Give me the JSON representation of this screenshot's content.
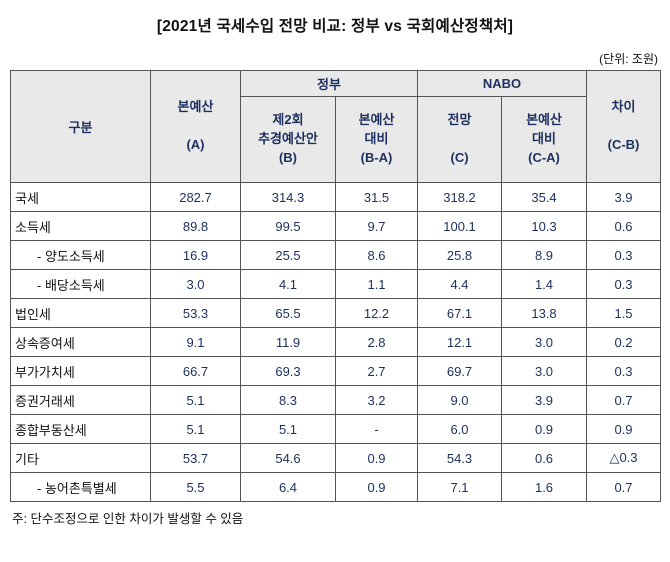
{
  "title": "[2021년 국세수입 전망 비교: 정부 vs 국회예산정책처]",
  "unit_note": "(단위: 조원)",
  "footnote": "주: 단수조정으로 인한 차이가 발생할 수 있음",
  "colors": {
    "header_bg": "#e9e9e9",
    "number_text": "#1c2f5e",
    "border": "#555555"
  },
  "table": {
    "header": {
      "category": "구분",
      "base_budget": "본예산\n\n(A)",
      "gov_group": "정부",
      "nabo_group": "NABO",
      "gov_supp": "제2회\n추경예산안\n(B)",
      "gov_vs_base": "본예산\n대비\n(B-A)",
      "nabo_forecast": "전망\n\n(C)",
      "nabo_vs_base": "본예산\n대비\n(C-A)",
      "diff": "차이\n\n(C-B)"
    },
    "rows": [
      {
        "label": "국세",
        "indent": false,
        "values": [
          "282.7",
          "314.3",
          "31.5",
          "318.2",
          "35.4",
          "3.9"
        ]
      },
      {
        "label": "소득세",
        "indent": false,
        "values": [
          "89.8",
          "99.5",
          "9.7",
          "100.1",
          "10.3",
          "0.6"
        ]
      },
      {
        "label": "- 양도소득세",
        "indent": true,
        "values": [
          "16.9",
          "25.5",
          "8.6",
          "25.8",
          "8.9",
          "0.3"
        ]
      },
      {
        "label": "- 배당소득세",
        "indent": true,
        "values": [
          "3.0",
          "4.1",
          "1.1",
          "4.4",
          "1.4",
          "0.3"
        ]
      },
      {
        "label": "법인세",
        "indent": false,
        "values": [
          "53.3",
          "65.5",
          "12.2",
          "67.1",
          "13.8",
          "1.5"
        ]
      },
      {
        "label": "상속증여세",
        "indent": false,
        "values": [
          "9.1",
          "11.9",
          "2.8",
          "12.1",
          "3.0",
          "0.2"
        ]
      },
      {
        "label": "부가가치세",
        "indent": false,
        "values": [
          "66.7",
          "69.3",
          "2.7",
          "69.7",
          "3.0",
          "0.3"
        ]
      },
      {
        "label": "증권거래세",
        "indent": false,
        "values": [
          "5.1",
          "8.3",
          "3.2",
          "9.0",
          "3.9",
          "0.7"
        ]
      },
      {
        "label": "종합부동산세",
        "indent": false,
        "values": [
          "5.1",
          "5.1",
          "-",
          "6.0",
          "0.9",
          "0.9"
        ]
      },
      {
        "label": "기타",
        "indent": false,
        "values": [
          "53.7",
          "54.6",
          "0.9",
          "54.3",
          "0.6",
          "△0.3"
        ]
      },
      {
        "label": "- 농어촌특별세",
        "indent": true,
        "values": [
          "5.5",
          "6.4",
          "0.9",
          "7.1",
          "1.6",
          "0.7"
        ]
      }
    ]
  }
}
